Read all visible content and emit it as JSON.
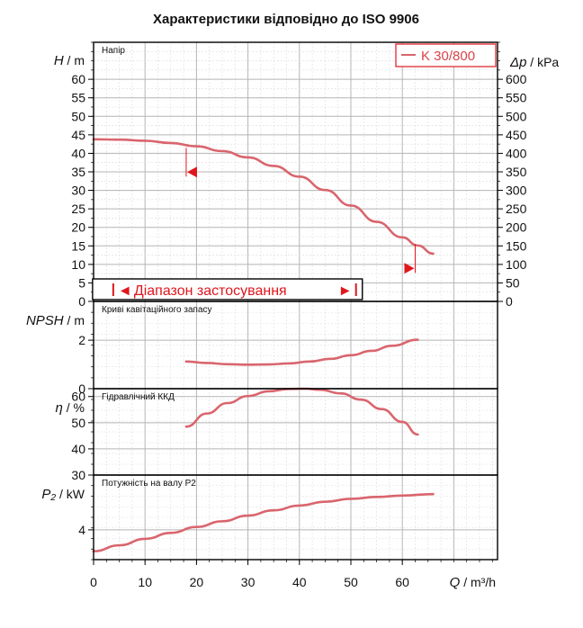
{
  "chart_data": {
    "type": "line",
    "title": "Характеристики відповідно до ISO 9906",
    "series_name": "K 30/800",
    "colors": {
      "curve": "#d9656d",
      "marker": "#e0161d",
      "grid": "#c9c9c9",
      "frame": "#000000"
    },
    "x": {
      "label_var": "Q",
      "label_unit": " / m³/h",
      "ticks": [
        "0",
        "10",
        "20",
        "30",
        "40",
        "50",
        "60"
      ],
      "range": [
        0,
        78.5
      ]
    },
    "range_label": "Діапазон застосування",
    "range_arrows": [
      "◄",
      "►"
    ],
    "operating_range": [
      4,
      51
    ],
    "panels": [
      {
        "key": "head",
        "name": "Напір",
        "ylabel_var": "H",
        "ylabel_unit": " / m",
        "right_label_var": "Δp",
        "right_label_unit": " / kPa",
        "ylim": [
          0,
          70
        ],
        "yticks": [
          "0",
          "5",
          "10",
          "15",
          "20",
          "25",
          "30",
          "35",
          "40",
          "45",
          "50",
          "55",
          "60"
        ],
        "right_ticks": [
          "0",
          "50",
          "100",
          "150",
          "200",
          "250",
          "300",
          "350",
          "400",
          "450",
          "500",
          "550",
          "600"
        ],
        "x": [
          0,
          5,
          10,
          15,
          20,
          25,
          30,
          35,
          40,
          45,
          50,
          55,
          60,
          63,
          66
        ],
        "y": [
          43.8,
          43.7,
          43.4,
          42.8,
          41.9,
          40.6,
          38.9,
          36.6,
          33.7,
          30.1,
          25.9,
          21.5,
          17.3,
          15.1,
          12.9
        ],
        "markers": [
          {
            "x": 18,
            "y": 41.5,
            "dir": "left"
          },
          {
            "x": 62.5,
            "y": 15.5,
            "dir": "right"
          }
        ]
      },
      {
        "key": "npsh",
        "name": "Криві кавітаційного запасу",
        "ylabel_var": "NPSH",
        "ylabel_unit": " / m",
        "ylim": [
          0,
          3.6
        ],
        "yticks": [
          "0",
          "2"
        ],
        "x": [
          18,
          22,
          26,
          30,
          34,
          38,
          42,
          46,
          50,
          54,
          58,
          63
        ],
        "y": [
          1.12,
          1.06,
          1.01,
          0.99,
          1.0,
          1.04,
          1.12,
          1.23,
          1.38,
          1.56,
          1.77,
          2.02
        ]
      },
      {
        "key": "eff",
        "name": "Гідравлічний ККД",
        "ylabel_var": "η",
        "ylabel_unit": " / %",
        "ylim": [
          30,
          63
        ],
        "yticks": [
          "30",
          "40",
          "50",
          "60"
        ],
        "x": [
          18,
          22,
          26,
          30,
          34,
          38,
          41,
          44,
          48,
          52,
          56,
          60,
          63
        ],
        "y": [
          48.5,
          53.5,
          57.5,
          60.2,
          62.0,
          62.9,
          63.0,
          62.6,
          61.2,
          58.8,
          55.2,
          50.3,
          45.5
        ]
      },
      {
        "key": "power",
        "name": "Потужність на валу Р2",
        "ylabel_var": "P₂",
        "ylabel_unit": " / kW",
        "ylim": [
          2.75,
          6.3
        ],
        "yticks": [
          "4"
        ],
        "x": [
          0,
          5,
          10,
          15,
          20,
          25,
          30,
          35,
          40,
          45,
          50,
          55,
          60,
          66
        ],
        "y": [
          3.1,
          3.35,
          3.62,
          3.87,
          4.12,
          4.36,
          4.6,
          4.82,
          5.02,
          5.18,
          5.3,
          5.38,
          5.44,
          5.5
        ]
      }
    ]
  }
}
